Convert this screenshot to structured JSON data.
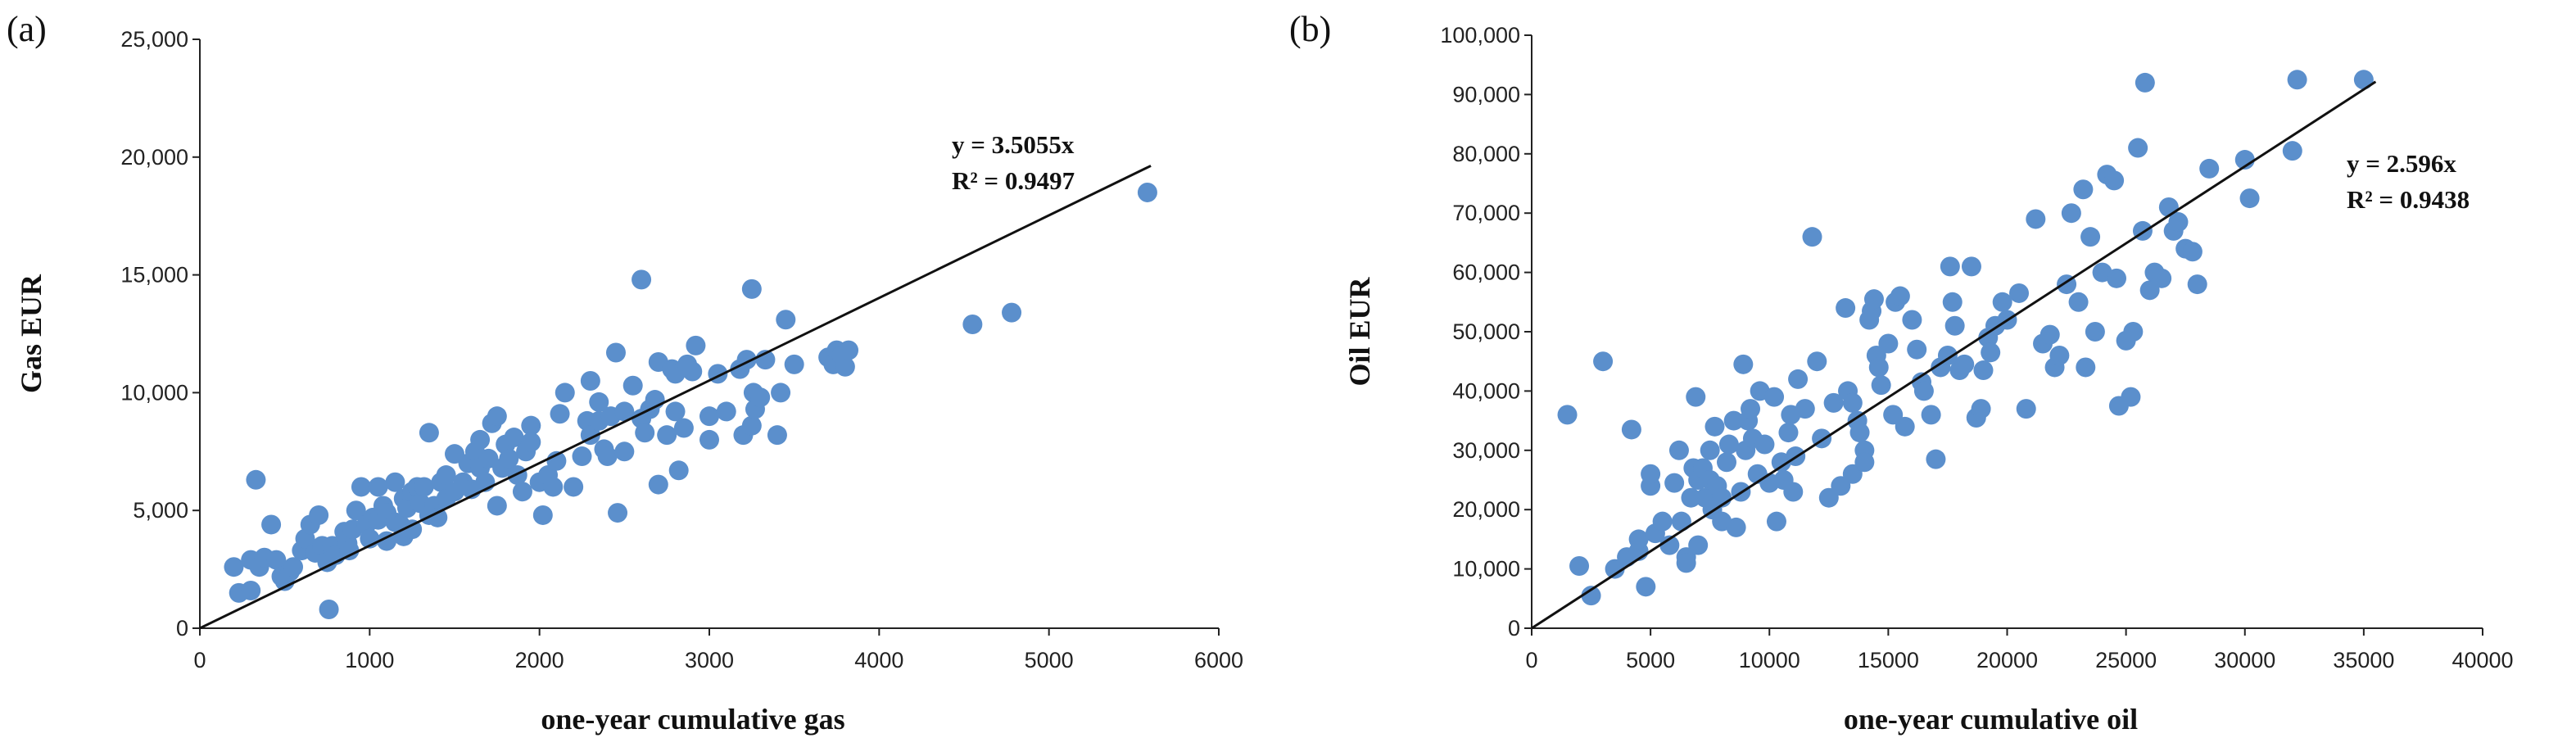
{
  "chart_data": [
    {
      "panel_label": "(a)",
      "type": "scatter",
      "title": "",
      "xlabel": "one-year cumulative gas",
      "ylabel": "Gas EUR",
      "xlim": [
        0,
        6000
      ],
      "ylim": [
        0,
        25000
      ],
      "xticks": [
        "0",
        "1000",
        "2000",
        "3000",
        "4000",
        "5000",
        "6000"
      ],
      "yticks": [
        "0",
        "5,000",
        "10,000",
        "15,000",
        "20,000",
        "25,000"
      ],
      "grid": false,
      "point_color": "#5B8FCC",
      "trendline": {
        "slope": 3.5055,
        "x_end": 5600
      },
      "equation": "y = 3.5055x",
      "r_squared": "R² = 0.9497",
      "points": [
        [
          200,
          2600
        ],
        [
          230,
          1500
        ],
        [
          300,
          1600
        ],
        [
          300,
          2900
        ],
        [
          330,
          6300
        ],
        [
          350,
          2600
        ],
        [
          380,
          3000
        ],
        [
          420,
          4400
        ],
        [
          450,
          2900
        ],
        [
          480,
          2200
        ],
        [
          500,
          2000
        ],
        [
          530,
          2400
        ],
        [
          550,
          2600
        ],
        [
          600,
          3300
        ],
        [
          620,
          3800
        ],
        [
          650,
          4400
        ],
        [
          680,
          3200
        ],
        [
          700,
          4800
        ],
        [
          720,
          3500
        ],
        [
          750,
          2800
        ],
        [
          780,
          3500
        ],
        [
          760,
          800
        ],
        [
          800,
          3100
        ],
        [
          850,
          4100
        ],
        [
          870,
          3600
        ],
        [
          880,
          3300
        ],
        [
          900,
          4200
        ],
        [
          920,
          5000
        ],
        [
          950,
          6000
        ],
        [
          980,
          4400
        ],
        [
          1000,
          3800
        ],
        [
          1020,
          4700
        ],
        [
          1050,
          4600
        ],
        [
          1050,
          6000
        ],
        [
          1080,
          5200
        ],
        [
          1100,
          4900
        ],
        [
          1100,
          3700
        ],
        [
          1150,
          4500
        ],
        [
          1150,
          6200
        ],
        [
          1180,
          4400
        ],
        [
          1200,
          3900
        ],
        [
          1200,
          5500
        ],
        [
          1220,
          5100
        ],
        [
          1250,
          4200
        ],
        [
          1250,
          5800
        ],
        [
          1280,
          6000
        ],
        [
          1300,
          5300
        ],
        [
          1320,
          6000
        ],
        [
          1350,
          4800
        ],
        [
          1350,
          8300
        ],
        [
          1380,
          5200
        ],
        [
          1400,
          4700
        ],
        [
          1420,
          6200
        ],
        [
          1450,
          6500
        ],
        [
          1450,
          5500
        ],
        [
          1500,
          7400
        ],
        [
          1500,
          5800
        ],
        [
          1550,
          6200
        ],
        [
          1580,
          7000
        ],
        [
          1600,
          5900
        ],
        [
          1620,
          7500
        ],
        [
          1650,
          6800
        ],
        [
          1650,
          8000
        ],
        [
          1680,
          6200
        ],
        [
          1700,
          7200
        ],
        [
          1720,
          8700
        ],
        [
          1750,
          9000
        ],
        [
          1750,
          5200
        ],
        [
          1780,
          6800
        ],
        [
          1800,
          7800
        ],
        [
          1820,
          7200
        ],
        [
          1850,
          8100
        ],
        [
          1870,
          6500
        ],
        [
          1900,
          5800
        ],
        [
          1920,
          7500
        ],
        [
          1950,
          8600
        ],
        [
          1950,
          7900
        ],
        [
          2000,
          6200
        ],
        [
          2020,
          4800
        ],
        [
          2050,
          6500
        ],
        [
          2080,
          6000
        ],
        [
          2100,
          7100
        ],
        [
          2120,
          9100
        ],
        [
          2150,
          10000
        ],
        [
          2200,
          6000
        ],
        [
          2250,
          7300
        ],
        [
          2280,
          8800
        ],
        [
          2300,
          8200
        ],
        [
          2300,
          10500
        ],
        [
          2350,
          9600
        ],
        [
          2350,
          8800
        ],
        [
          2380,
          7600
        ],
        [
          2400,
          7300
        ],
        [
          2420,
          9000
        ],
        [
          2450,
          11700
        ],
        [
          2460,
          4900
        ],
        [
          2500,
          7500
        ],
        [
          2500,
          9200
        ],
        [
          2550,
          10300
        ],
        [
          2600,
          8900
        ],
        [
          2600,
          14800
        ],
        [
          2620,
          8300
        ],
        [
          2650,
          9300
        ],
        [
          2680,
          9700
        ],
        [
          2700,
          11300
        ],
        [
          2700,
          6100
        ],
        [
          2750,
          8200
        ],
        [
          2780,
          11000
        ],
        [
          2800,
          9200
        ],
        [
          2800,
          10800
        ],
        [
          2820,
          6700
        ],
        [
          2850,
          8500
        ],
        [
          2870,
          11200
        ],
        [
          2900,
          10900
        ],
        [
          2920,
          12000
        ],
        [
          3000,
          9000
        ],
        [
          3000,
          8000
        ],
        [
          3050,
          10800
        ],
        [
          3100,
          9200
        ],
        [
          3180,
          11000
        ],
        [
          3200,
          8200
        ],
        [
          3220,
          11400
        ],
        [
          3250,
          8600
        ],
        [
          3250,
          14400
        ],
        [
          3260,
          10000
        ],
        [
          3270,
          9300
        ],
        [
          3300,
          9800
        ],
        [
          3330,
          11400
        ],
        [
          3400,
          8200
        ],
        [
          3420,
          10000
        ],
        [
          3450,
          13100
        ],
        [
          3500,
          11200
        ],
        [
          3700,
          11500
        ],
        [
          3730,
          11200
        ],
        [
          3750,
          11800
        ],
        [
          3780,
          11600
        ],
        [
          3800,
          11100
        ],
        [
          3820,
          11800
        ],
        [
          4550,
          12900
        ],
        [
          4780,
          13400
        ],
        [
          5580,
          18500
        ]
      ]
    },
    {
      "panel_label": "(b)",
      "type": "scatter",
      "title": "",
      "xlabel": "one-year cumulative oil",
      "ylabel": "Oil EUR",
      "xlim": [
        0,
        40000
      ],
      "ylim": [
        0,
        100000
      ],
      "xticks": [
        "0",
        "5000",
        "10000",
        "15000",
        "20000",
        "25000",
        "30000",
        "35000",
        "40000"
      ],
      "yticks": [
        "0",
        "10,000",
        "20,000",
        "30,000",
        "40,000",
        "50,000",
        "60,000",
        "70,000",
        "80,000",
        "90,000",
        "100,000"
      ],
      "grid": false,
      "point_color": "#5B8FCC",
      "trendline": {
        "slope": 2.596,
        "x_end": 35500
      },
      "equation": "y = 2.596x",
      "r_squared": "R² = 0.9438",
      "points": [
        [
          1500,
          36000
        ],
        [
          2000,
          10500
        ],
        [
          2500,
          5500
        ],
        [
          3000,
          45000
        ],
        [
          3500,
          10000
        ],
        [
          4000,
          12000
        ],
        [
          4200,
          33500
        ],
        [
          4500,
          13000
        ],
        [
          4500,
          15000
        ],
        [
          4800,
          7000
        ],
        [
          5000,
          24000
        ],
        [
          5000,
          26000
        ],
        [
          5200,
          16000
        ],
        [
          5500,
          18000
        ],
        [
          5800,
          14000
        ],
        [
          6000,
          24500
        ],
        [
          6200,
          30000
        ],
        [
          6300,
          18000
        ],
        [
          6500,
          12000
        ],
        [
          6500,
          11000
        ],
        [
          6700,
          22000
        ],
        [
          6800,
          27000
        ],
        [
          6900,
          39000
        ],
        [
          7000,
          25000
        ],
        [
          7000,
          14000
        ],
        [
          7200,
          27000
        ],
        [
          7300,
          22000
        ],
        [
          7500,
          30000
        ],
        [
          7500,
          25000
        ],
        [
          7600,
          20000
        ],
        [
          7700,
          34000
        ],
        [
          7800,
          24000
        ],
        [
          8000,
          18000
        ],
        [
          8000,
          22000
        ],
        [
          8200,
          28000
        ],
        [
          8300,
          31000
        ],
        [
          8500,
          35000
        ],
        [
          8600,
          17000
        ],
        [
          8800,
          23000
        ],
        [
          8900,
          44500
        ],
        [
          9000,
          30000
        ],
        [
          9100,
          35000
        ],
        [
          9200,
          37000
        ],
        [
          9300,
          32000
        ],
        [
          9500,
          26000
        ],
        [
          9600,
          40000
        ],
        [
          9800,
          31000
        ],
        [
          10000,
          24500
        ],
        [
          10200,
          39000
        ],
        [
          10300,
          18000
        ],
        [
          10500,
          28000
        ],
        [
          10600,
          25000
        ],
        [
          10800,
          33000
        ],
        [
          10900,
          36000
        ],
        [
          11000,
          23000
        ],
        [
          11100,
          29000
        ],
        [
          11200,
          42000
        ],
        [
          11500,
          37000
        ],
        [
          11800,
          66000
        ],
        [
          12000,
          45000
        ],
        [
          12200,
          32000
        ],
        [
          12500,
          22000
        ],
        [
          12700,
          38000
        ],
        [
          13000,
          24000
        ],
        [
          13200,
          54000
        ],
        [
          13300,
          40000
        ],
        [
          13500,
          38000
        ],
        [
          13500,
          26000
        ],
        [
          13700,
          35000
        ],
        [
          13800,
          33000
        ],
        [
          14000,
          30000
        ],
        [
          14000,
          28000
        ],
        [
          14200,
          52000
        ],
        [
          14300,
          53500
        ],
        [
          14400,
          55500
        ],
        [
          14500,
          46000
        ],
        [
          14600,
          44000
        ],
        [
          14700,
          41000
        ],
        [
          15000,
          48000
        ],
        [
          15200,
          36000
        ],
        [
          15300,
          55000
        ],
        [
          15500,
          56000
        ],
        [
          15700,
          34000
        ],
        [
          16000,
          52000
        ],
        [
          16200,
          47000
        ],
        [
          16400,
          41500
        ],
        [
          16500,
          40000
        ],
        [
          16800,
          36000
        ],
        [
          17000,
          28500
        ],
        [
          17200,
          44000
        ],
        [
          17500,
          46000
        ],
        [
          17600,
          61000
        ],
        [
          17700,
          55000
        ],
        [
          17800,
          51000
        ],
        [
          18000,
          43500
        ],
        [
          18200,
          44500
        ],
        [
          18500,
          61000
        ],
        [
          18700,
          35500
        ],
        [
          18900,
          37000
        ],
        [
          19000,
          43500
        ],
        [
          19200,
          49000
        ],
        [
          19300,
          46500
        ],
        [
          19500,
          51000
        ],
        [
          19800,
          55000
        ],
        [
          20000,
          52000
        ],
        [
          20500,
          56500
        ],
        [
          20800,
          37000
        ],
        [
          21200,
          69000
        ],
        [
          21500,
          48000
        ],
        [
          21800,
          49500
        ],
        [
          22000,
          44000
        ],
        [
          22200,
          46000
        ],
        [
          22500,
          58000
        ],
        [
          22700,
          70000
        ],
        [
          23000,
          55000
        ],
        [
          23200,
          74000
        ],
        [
          23300,
          44000
        ],
        [
          23500,
          66000
        ],
        [
          23700,
          50000
        ],
        [
          24000,
          60000
        ],
        [
          24200,
          76500
        ],
        [
          24500,
          75500
        ],
        [
          24600,
          59000
        ],
        [
          24700,
          37500
        ],
        [
          25000,
          48500
        ],
        [
          25200,
          39000
        ],
        [
          25300,
          50000
        ],
        [
          25500,
          81000
        ],
        [
          25700,
          67000
        ],
        [
          25800,
          92000
        ],
        [
          26000,
          57000
        ],
        [
          26200,
          60000
        ],
        [
          26500,
          59000
        ],
        [
          26800,
          71000
        ],
        [
          27000,
          67000
        ],
        [
          27200,
          68500
        ],
        [
          27500,
          64000
        ],
        [
          27800,
          63500
        ],
        [
          28000,
          58000
        ],
        [
          28500,
          77500
        ],
        [
          30000,
          79000
        ],
        [
          30200,
          72500
        ],
        [
          32000,
          80500
        ],
        [
          32200,
          92500
        ],
        [
          35000,
          92500
        ]
      ]
    }
  ]
}
